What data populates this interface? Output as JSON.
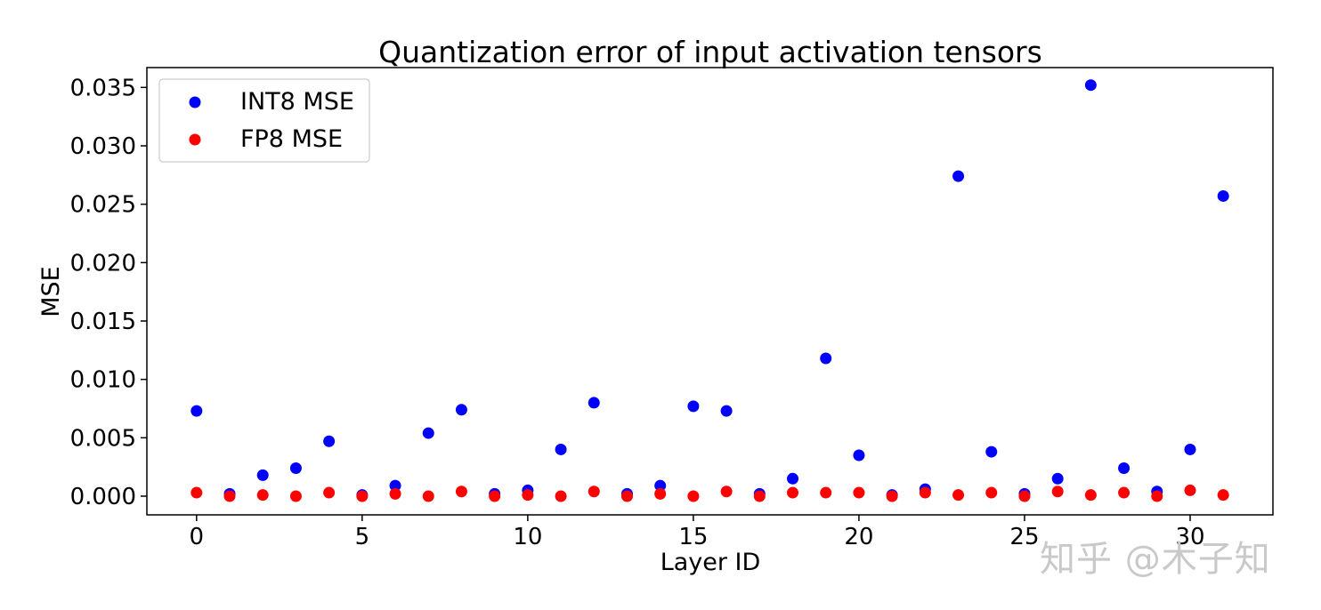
{
  "chart_data": {
    "type": "scatter",
    "title": "Quantization error of input activation tensors",
    "xlabel": "Layer ID",
    "ylabel": "MSE",
    "xlim": [
      -1.5,
      32.5
    ],
    "ylim": [
      -0.0016,
      0.0367
    ],
    "xticks": [
      0,
      5,
      10,
      15,
      20,
      25,
      30
    ],
    "xtick_labels": [
      "0",
      "5",
      "10",
      "15",
      "20",
      "25",
      "30"
    ],
    "yticks": [
      0.0,
      0.005,
      0.01,
      0.015,
      0.02,
      0.025,
      0.03,
      0.035
    ],
    "ytick_labels": [
      "0.000",
      "0.005",
      "0.010",
      "0.015",
      "0.020",
      "0.025",
      "0.030",
      "0.035"
    ],
    "grid": false,
    "legend_position": "upper-left",
    "x": [
      0,
      1,
      2,
      3,
      4,
      5,
      6,
      7,
      8,
      9,
      10,
      11,
      12,
      13,
      14,
      15,
      16,
      17,
      18,
      19,
      20,
      21,
      22,
      23,
      24,
      25,
      26,
      27,
      28,
      29,
      30,
      31
    ],
    "series": [
      {
        "name": "INT8 MSE",
        "color": "#0000ff",
        "values": [
          0.0073,
          0.0002,
          0.0018,
          0.0024,
          0.0047,
          0.0001,
          0.0009,
          0.0054,
          0.0074,
          0.0002,
          0.0005,
          0.004,
          0.008,
          0.0002,
          0.0009,
          0.0077,
          0.0073,
          0.0002,
          0.0015,
          0.0118,
          0.0035,
          0.0001,
          0.0006,
          0.0274,
          0.0038,
          0.0002,
          0.0015,
          0.0352,
          0.0024,
          0.0004,
          0.004,
          0.0257
        ]
      },
      {
        "name": "FP8 MSE",
        "color": "#ff0000",
        "values": [
          0.0003,
          0.0,
          0.0001,
          0.0,
          0.0003,
          0.0,
          0.0002,
          0.0,
          0.0004,
          0.0,
          0.0001,
          0.0,
          0.0004,
          0.0,
          0.0002,
          0.0,
          0.0004,
          0.0,
          0.0003,
          0.0003,
          0.0003,
          0.0,
          0.0003,
          0.0001,
          0.0003,
          0.0,
          0.0004,
          0.0001,
          0.0003,
          0.0,
          0.0005,
          0.0001
        ]
      }
    ]
  },
  "watermark": "知乎 @木子知"
}
